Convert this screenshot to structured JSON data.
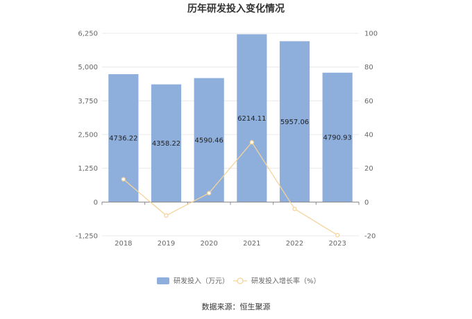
{
  "chart_data": {
    "type": "bar",
    "title": "历年研发投入变化情况",
    "categories": [
      "2018",
      "2019",
      "2020",
      "2021",
      "2022",
      "2023"
    ],
    "series": [
      {
        "name": "研发投入（万元）",
        "type": "bar",
        "axis": "left",
        "color": "#8eaedb",
        "values": [
          4736.22,
          4358.22,
          4590.46,
          6214.11,
          5957.06,
          4790.93
        ],
        "value_labels": [
          "4736.22",
          "4358.22",
          "4590.46",
          "6214.11",
          "5957.06",
          "4790.93"
        ]
      },
      {
        "name": "研发投入增长率（%）",
        "type": "line",
        "axis": "right",
        "color": "#f5d49b",
        "values": [
          13.5,
          -8,
          5.3,
          35.4,
          -4.1,
          -19.6
        ]
      }
    ],
    "y_left": {
      "ylim": [
        -1250,
        6250
      ],
      "ticks": [
        -1250,
        0,
        1250,
        2500,
        3750,
        5000,
        6250
      ],
      "tick_labels": [
        "-1,250",
        "0",
        "1,250",
        "2,500",
        "3,750",
        "5,000",
        "6,250"
      ]
    },
    "y_right": {
      "ylim": [
        -20,
        100
      ],
      "ticks": [
        -20,
        0,
        20,
        40,
        60,
        80,
        100
      ],
      "tick_labels": [
        "-20",
        "0",
        "20",
        "40",
        "60",
        "80",
        "100"
      ]
    },
    "grid": true,
    "legend_position": "bottom-center"
  },
  "source": "数据来源：恒生聚源"
}
